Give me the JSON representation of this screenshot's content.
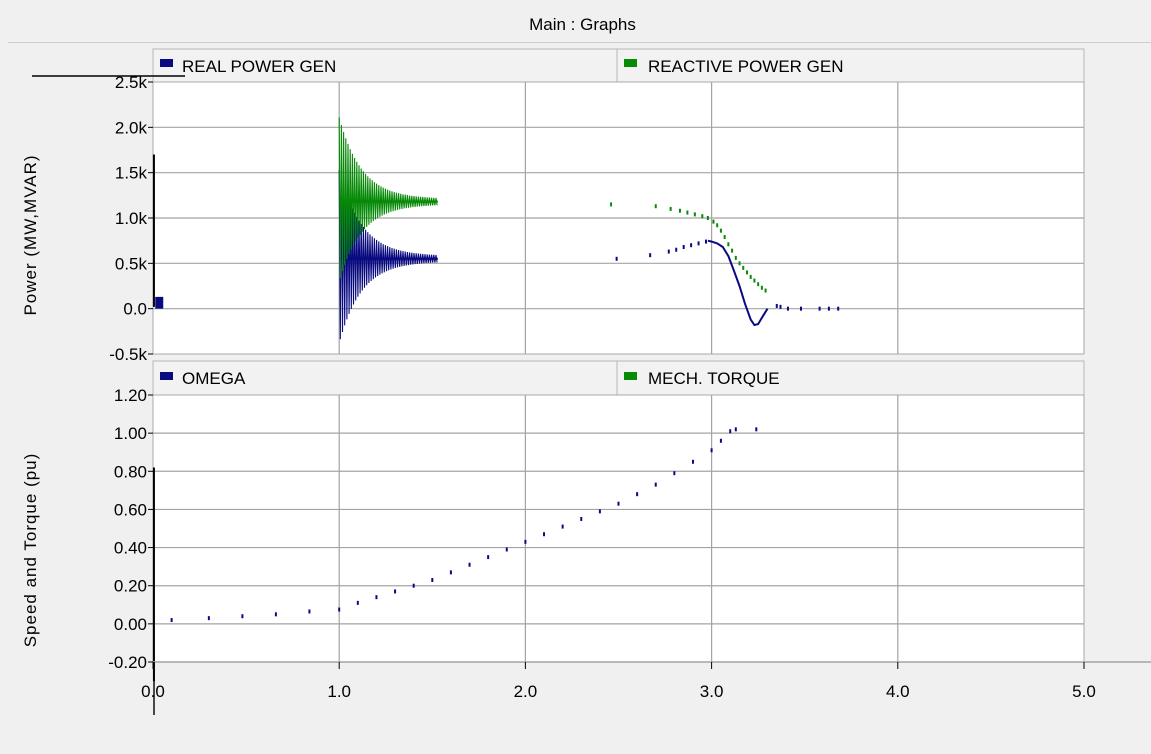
{
  "window": {
    "title": "Main : Graphs"
  },
  "colors": {
    "navy": "#0a0a80",
    "green": "#078a07",
    "grid": "#a4a4a4"
  },
  "chart_data": [
    {
      "type": "line",
      "ylabel": "Power (MW,MVAR)",
      "xlim": [
        0,
        5
      ],
      "ylim": [
        -0.5,
        2.5
      ],
      "y_ticks": [
        {
          "v": 2.5,
          "label": "2.5k"
        },
        {
          "v": 2.0,
          "label": "2.0k"
        },
        {
          "v": 1.5,
          "label": "1.5k"
        },
        {
          "v": 1.0,
          "label": "1.0k"
        },
        {
          "v": 0.5,
          "label": "0.5k"
        },
        {
          "v": 0.0,
          "label": "0.0"
        },
        {
          "v": -0.5,
          "label": "-0.5k"
        }
      ],
      "grid": true,
      "legend": [
        "REAL POWER GEN",
        "REACTIVE POWER GEN"
      ],
      "series": [
        {
          "name": "REAL POWER GEN",
          "color": "#0a0a80",
          "spike": {
            "x": 0.005,
            "y0": 0.02,
            "y1": 1.7
          },
          "start_blob": {
            "x0": 0.012,
            "x1": 0.055,
            "y0": 0.0,
            "y1": 0.13
          },
          "oscillation": {
            "x0": 1.0,
            "x1": 1.53,
            "center": 0.55,
            "amp0": 0.95,
            "decay": 0.12
          },
          "points": [
            [
              2.49,
              0.55
            ],
            [
              2.67,
              0.59
            ],
            [
              2.77,
              0.63
            ],
            [
              2.81,
              0.65
            ],
            [
              2.85,
              0.68
            ],
            [
              2.89,
              0.7
            ],
            [
              2.93,
              0.72
            ],
            [
              2.97,
              0.74
            ]
          ],
          "curve": [
            [
              2.98,
              0.75
            ],
            [
              3.0,
              0.74
            ],
            [
              3.03,
              0.72
            ],
            [
              3.06,
              0.68
            ],
            [
              3.09,
              0.58
            ],
            [
              3.12,
              0.42
            ],
            [
              3.15,
              0.25
            ],
            [
              3.18,
              0.05
            ],
            [
              3.21,
              -0.12
            ],
            [
              3.23,
              -0.18
            ],
            [
              3.25,
              -0.17
            ],
            [
              3.27,
              -0.1
            ],
            [
              3.3,
              0.0
            ]
          ],
          "tail_points": [
            [
              3.35,
              0.03
            ],
            [
              3.37,
              0.02
            ],
            [
              3.41,
              0.0
            ],
            [
              3.48,
              0.0
            ],
            [
              3.58,
              0.0
            ],
            [
              3.63,
              0.0
            ],
            [
              3.68,
              0.0
            ]
          ]
        },
        {
          "name": "REACTIVE POWER GEN",
          "color": "#078a07",
          "oscillation": {
            "x0": 1.0,
            "x1": 1.53,
            "center": 1.18,
            "amp0": 0.9,
            "decay": 0.12
          },
          "points": [
            [
              2.46,
              1.15
            ],
            [
              2.7,
              1.13
            ],
            [
              2.78,
              1.1
            ],
            [
              2.83,
              1.08
            ],
            [
              2.87,
              1.06
            ],
            [
              2.91,
              1.04
            ],
            [
              2.95,
              1.02
            ],
            [
              2.98,
              1.0
            ],
            [
              3.01,
              0.96
            ],
            [
              3.03,
              0.92
            ],
            [
              3.05,
              0.86
            ],
            [
              3.07,
              0.79
            ],
            [
              3.09,
              0.71
            ],
            [
              3.11,
              0.64
            ],
            [
              3.13,
              0.56
            ],
            [
              3.15,
              0.5
            ],
            [
              3.17,
              0.45
            ],
            [
              3.19,
              0.4
            ],
            [
              3.21,
              0.35
            ],
            [
              3.23,
              0.31
            ],
            [
              3.25,
              0.27
            ],
            [
              3.27,
              0.23
            ],
            [
              3.29,
              0.2
            ]
          ]
        }
      ]
    },
    {
      "type": "scatter",
      "ylabel": "Speed and Torque (pu)",
      "xlim": [
        0,
        5
      ],
      "ylim": [
        -0.2,
        1.2
      ],
      "y_ticks": [
        {
          "v": 1.2,
          "label": "1.20"
        },
        {
          "v": 1.0,
          "label": "1.00"
        },
        {
          "v": 0.8,
          "label": "0.80"
        },
        {
          "v": 0.6,
          "label": "0.60"
        },
        {
          "v": 0.4,
          "label": "0.40"
        },
        {
          "v": 0.2,
          "label": "0.20"
        },
        {
          "v": 0.0,
          "label": "0.00"
        },
        {
          "v": -0.2,
          "label": "-0.20"
        }
      ],
      "x_ticks": [
        {
          "v": 0,
          "label": "0.0"
        },
        {
          "v": 1,
          "label": "1.0"
        },
        {
          "v": 2,
          "label": "2.0"
        },
        {
          "v": 3,
          "label": "3.0"
        },
        {
          "v": 4,
          "label": "4.0"
        },
        {
          "v": 5,
          "label": "5.0"
        }
      ],
      "grid": true,
      "legend": [
        "OMEGA",
        "MECH. TORQUE"
      ],
      "series": [
        {
          "name": "OMEGA",
          "color": "#0a0a80",
          "spike": {
            "x": 0.005,
            "y0": -0.3,
            "y1": 0.82
          },
          "points": [
            [
              0.1,
              0.02
            ],
            [
              0.3,
              0.03
            ],
            [
              0.48,
              0.04
            ],
            [
              0.66,
              0.05
            ],
            [
              0.84,
              0.065
            ],
            [
              1.0,
              0.075
            ],
            [
              1.1,
              0.11
            ],
            [
              1.2,
              0.14
            ],
            [
              1.3,
              0.17
            ],
            [
              1.4,
              0.2
            ],
            [
              1.5,
              0.23
            ],
            [
              1.6,
              0.27
            ],
            [
              1.7,
              0.31
            ],
            [
              1.8,
              0.35
            ],
            [
              1.9,
              0.39
            ],
            [
              2.0,
              0.43
            ],
            [
              2.1,
              0.47
            ],
            [
              2.2,
              0.51
            ],
            [
              2.3,
              0.55
            ],
            [
              2.4,
              0.59
            ],
            [
              2.5,
              0.63
            ],
            [
              2.6,
              0.68
            ],
            [
              2.7,
              0.73
            ],
            [
              2.8,
              0.79
            ],
            [
              2.9,
              0.85
            ],
            [
              3.0,
              0.91
            ],
            [
              3.05,
              0.96
            ],
            [
              3.1,
              1.01
            ],
            [
              3.13,
              1.02
            ],
            [
              3.24,
              1.02
            ]
          ]
        },
        {
          "name": "MECH. TORQUE",
          "color": "#078a07",
          "points": []
        }
      ]
    }
  ]
}
